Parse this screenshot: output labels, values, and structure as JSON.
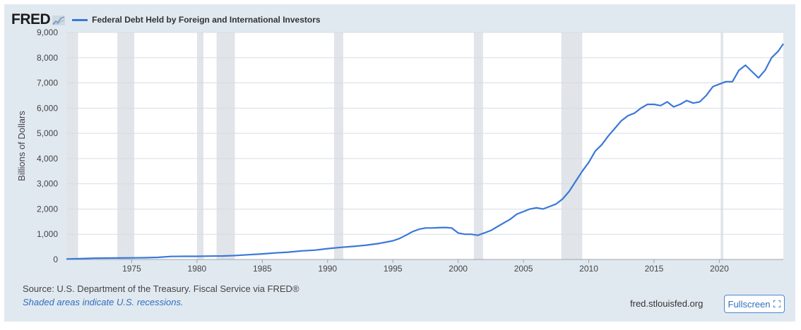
{
  "header": {
    "logo": "FRED",
    "legend_label": "Federal Debt Held by Foreign and International Investors",
    "legend_color": "#3a78d8"
  },
  "footer": {
    "source": "Source: U.S. Department of the Treasury. Fiscal Service via FRED®",
    "recession_note": "Shaded areas indicate U.S. recessions.",
    "site": "fred.stlouisfed.org",
    "fullscreen_label": "Fullscreen"
  },
  "chart_data": {
    "type": "line",
    "ylabel": "Billions of Dollars",
    "xlim": [
      1970.0,
      2024.9
    ],
    "ylim": [
      0,
      9000
    ],
    "yticks": [
      0,
      1000,
      2000,
      3000,
      4000,
      5000,
      6000,
      7000,
      8000,
      9000
    ],
    "ytick_labels": [
      "0",
      "1,000",
      "2,000",
      "3,000",
      "4,000",
      "5,000",
      "6,000",
      "7,000",
      "8,000",
      "9,000"
    ],
    "xticks": [
      1975,
      1980,
      1985,
      1990,
      1995,
      2000,
      2005,
      2010,
      2015,
      2020
    ],
    "xtick_labels": [
      "1975",
      "1980",
      "1985",
      "1990",
      "1995",
      "2000",
      "2005",
      "2010",
      "2015",
      "2020"
    ],
    "grid": true,
    "recessions": [
      [
        1969.9,
        1970.9
      ],
      [
        1973.9,
        1975.2
      ],
      [
        1980.0,
        1980.5
      ],
      [
        1981.5,
        1982.9
      ],
      [
        1990.5,
        1991.2
      ],
      [
        2001.2,
        2001.9
      ],
      [
        2007.9,
        2009.5
      ],
      [
        2020.1,
        2020.3
      ]
    ],
    "series": [
      {
        "color": "#3a78d8",
        "x": [
          1970.0,
          1971.0,
          1972.0,
          1973.0,
          1974.0,
          1975.0,
          1976.0,
          1977.0,
          1978.0,
          1979.0,
          1980.0,
          1981.0,
          1982.0,
          1983.0,
          1984.0,
          1985.0,
          1986.0,
          1987.0,
          1988.0,
          1989.0,
          1990.0,
          1991.0,
          1992.0,
          1993.0,
          1994.0,
          1995.0,
          1995.5,
          1996.0,
          1996.5,
          1997.0,
          1997.5,
          1998.0,
          1998.5,
          1999.0,
          1999.5,
          2000.0,
          2000.5,
          2001.0,
          2001.5,
          2002.0,
          2002.5,
          2003.0,
          2003.5,
          2004.0,
          2004.5,
          2005.0,
          2005.5,
          2006.0,
          2006.5,
          2007.0,
          2007.5,
          2008.0,
          2008.5,
          2009.0,
          2009.5,
          2010.0,
          2010.5,
          2011.0,
          2011.5,
          2012.0,
          2012.5,
          2013.0,
          2013.5,
          2014.0,
          2014.5,
          2015.0,
          2015.5,
          2016.0,
          2016.5,
          2017.0,
          2017.5,
          2018.0,
          2018.5,
          2019.0,
          2019.5,
          2020.0,
          2020.5,
          2021.0,
          2021.5,
          2022.0,
          2022.5,
          2023.0,
          2023.5,
          2024.0,
          2024.5,
          2024.9
        ],
        "values": [
          20,
          30,
          50,
          55,
          60,
          65,
          70,
          85,
          120,
          125,
          125,
          135,
          140,
          160,
          190,
          220,
          260,
          290,
          340,
          370,
          430,
          480,
          520,
          570,
          640,
          740,
          830,
          960,
          1100,
          1200,
          1250,
          1250,
          1260,
          1270,
          1250,
          1050,
          1000,
          1000,
          960,
          1050,
          1150,
          1300,
          1450,
          1600,
          1800,
          1900,
          2000,
          2050,
          2000,
          2100,
          2200,
          2400,
          2700,
          3100,
          3500,
          3850,
          4300,
          4550,
          4900,
          5200,
          5500,
          5700,
          5800,
          6000,
          6150,
          6150,
          6100,
          6250,
          6050,
          6150,
          6300,
          6200,
          6250,
          6500,
          6850,
          6950,
          7050,
          7050,
          7500,
          7700,
          7450,
          7200,
          7500,
          8000,
          8250,
          8550
        ]
      }
    ]
  }
}
